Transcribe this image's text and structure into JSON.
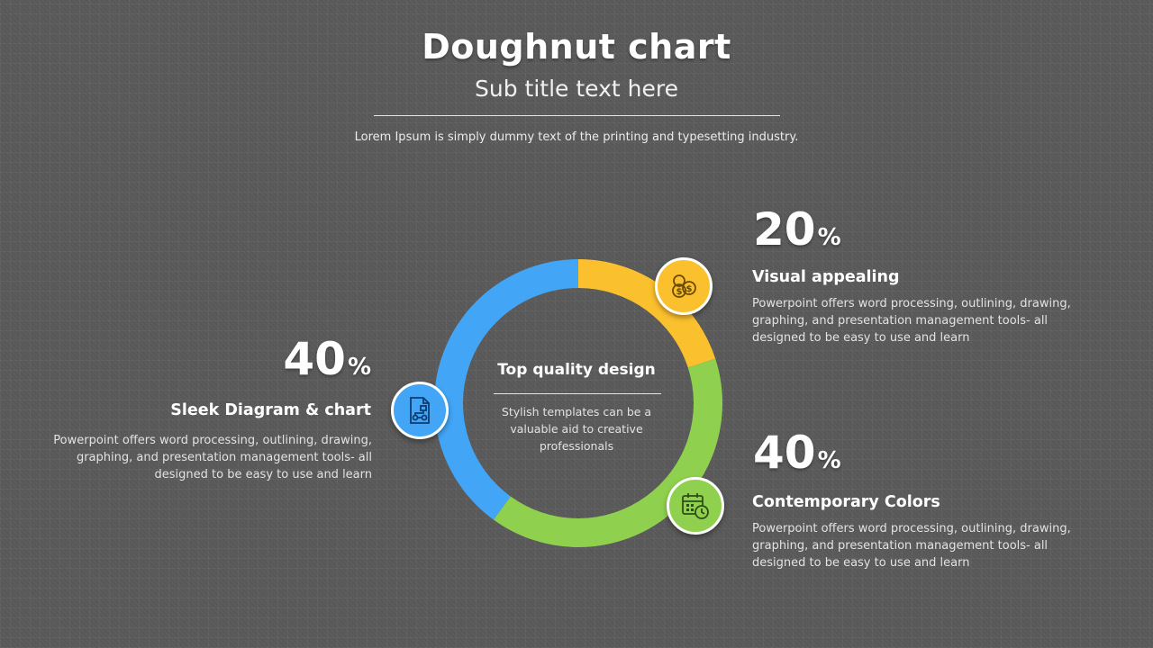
{
  "header": {
    "title": "Doughnut chart",
    "subtitle": "Sub title text here",
    "intro": "Lorem Ipsum is simply dummy text of the printing and typesetting industry."
  },
  "center": {
    "title": "Top quality design",
    "text": "Stylish templates can be a valuable aid to creative professionals"
  },
  "chart_data": {
    "type": "pie",
    "variant": "doughnut",
    "categories": [
      "Visual appealing",
      "Contemporary Colors",
      "Sleek Diagram & chart"
    ],
    "values": [
      20,
      40,
      40
    ],
    "colors": [
      "#fbc02d",
      "#8fd14f",
      "#42a5f5"
    ],
    "unit": "%"
  },
  "items": [
    {
      "value": "20",
      "sign": "%",
      "heading": "Visual appealing",
      "desc": "Powerpoint offers word processing, outlining, drawing, graphing, and presentation management tools- all designed to be easy to use and learn",
      "color": "#fbc02d",
      "icon": "coins-icon"
    },
    {
      "value": "40",
      "sign": "%",
      "heading": "Contemporary Colors",
      "desc": "Powerpoint offers word processing, outlining, drawing, graphing, and presentation management tools- all designed to be easy to use and learn",
      "color": "#8fd14f",
      "icon": "calendar-clock-icon"
    },
    {
      "value": "40",
      "sign": "%",
      "heading": "Sleek Diagram & chart",
      "desc": "Powerpoint offers word processing, outlining, drawing, graphing, and presentation management tools- all designed to be easy to use and learn",
      "color": "#42a5f5",
      "icon": "flowchart-document-icon"
    }
  ]
}
